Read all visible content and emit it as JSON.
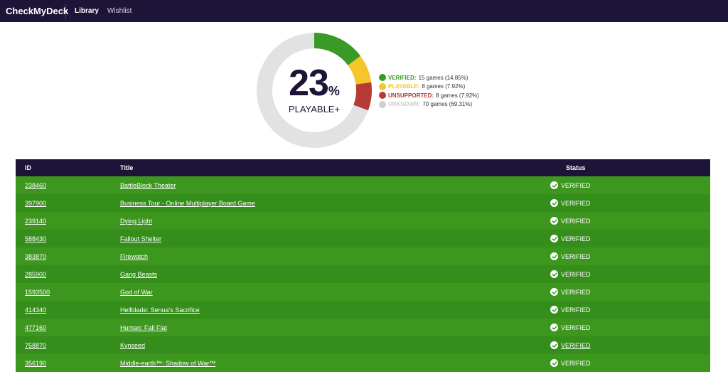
{
  "nav": {
    "brand": "CheckMyDeck",
    "links": [
      {
        "label": "Library",
        "active": true
      },
      {
        "label": "Wishlist",
        "active": false
      }
    ]
  },
  "summary": {
    "percent": "23",
    "percent_sign": "%",
    "label": "PLAYABLE+"
  },
  "chart_data": {
    "type": "pie",
    "categories": [
      "VERIFIED",
      "PLAYABLE",
      "UNSUPPORTED",
      "UNKNOWN"
    ],
    "values": [
      15,
      8,
      8,
      70
    ],
    "colors": [
      "#3a9a25",
      "#f5c52a",
      "#b73a36",
      "#e2e2e2"
    ]
  },
  "legend": [
    {
      "label": "VERIFIED:",
      "detail": "15 games (14.85%)",
      "color": "#3a9a25"
    },
    {
      "label": "PLAYABLE:",
      "detail": "8 games (7.92%)",
      "color": "#f5c52a"
    },
    {
      "label": "UNSUPPORTED:",
      "detail": "8 games (7.92%)",
      "color": "#b73a36"
    },
    {
      "label": "UNKNOWN:",
      "detail": "70 games (69.31%)",
      "color": "#cfcfcf"
    }
  ],
  "table": {
    "headers": {
      "id": "ID",
      "title": "Title",
      "status": "Status"
    },
    "rows": [
      {
        "id": "238460",
        "title": "BattleBlock Theater",
        "status": "VERIFIED",
        "status_link": false
      },
      {
        "id": "397900",
        "title": "Business Tour - Online Multiplayer Board Game",
        "status": "VERIFIED",
        "status_link": false
      },
      {
        "id": "239140",
        "title": "Dying Light",
        "status": "VERIFIED",
        "status_link": false
      },
      {
        "id": "588430",
        "title": "Fallout Shelter",
        "status": "VERIFIED",
        "status_link": false
      },
      {
        "id": "383870",
        "title": "Firewatch",
        "status": "VERIFIED",
        "status_link": false
      },
      {
        "id": "285900",
        "title": "Gang Beasts",
        "status": "VERIFIED",
        "status_link": false
      },
      {
        "id": "1593500",
        "title": "God of War",
        "status": "VERIFIED",
        "status_link": false
      },
      {
        "id": "414340",
        "title": "Hellblade: Senua's Sacrifice",
        "status": "VERIFIED",
        "status_link": false
      },
      {
        "id": "477160",
        "title": "Human: Fall Flat",
        "status": "VERIFIED",
        "status_link": false
      },
      {
        "id": "758870",
        "title": "Kynseed",
        "status": "VERIFIED",
        "status_link": true
      },
      {
        "id": "356190",
        "title": "Middle-earth™: Shadow of War™",
        "status": "VERIFIED",
        "status_link": false
      }
    ]
  }
}
